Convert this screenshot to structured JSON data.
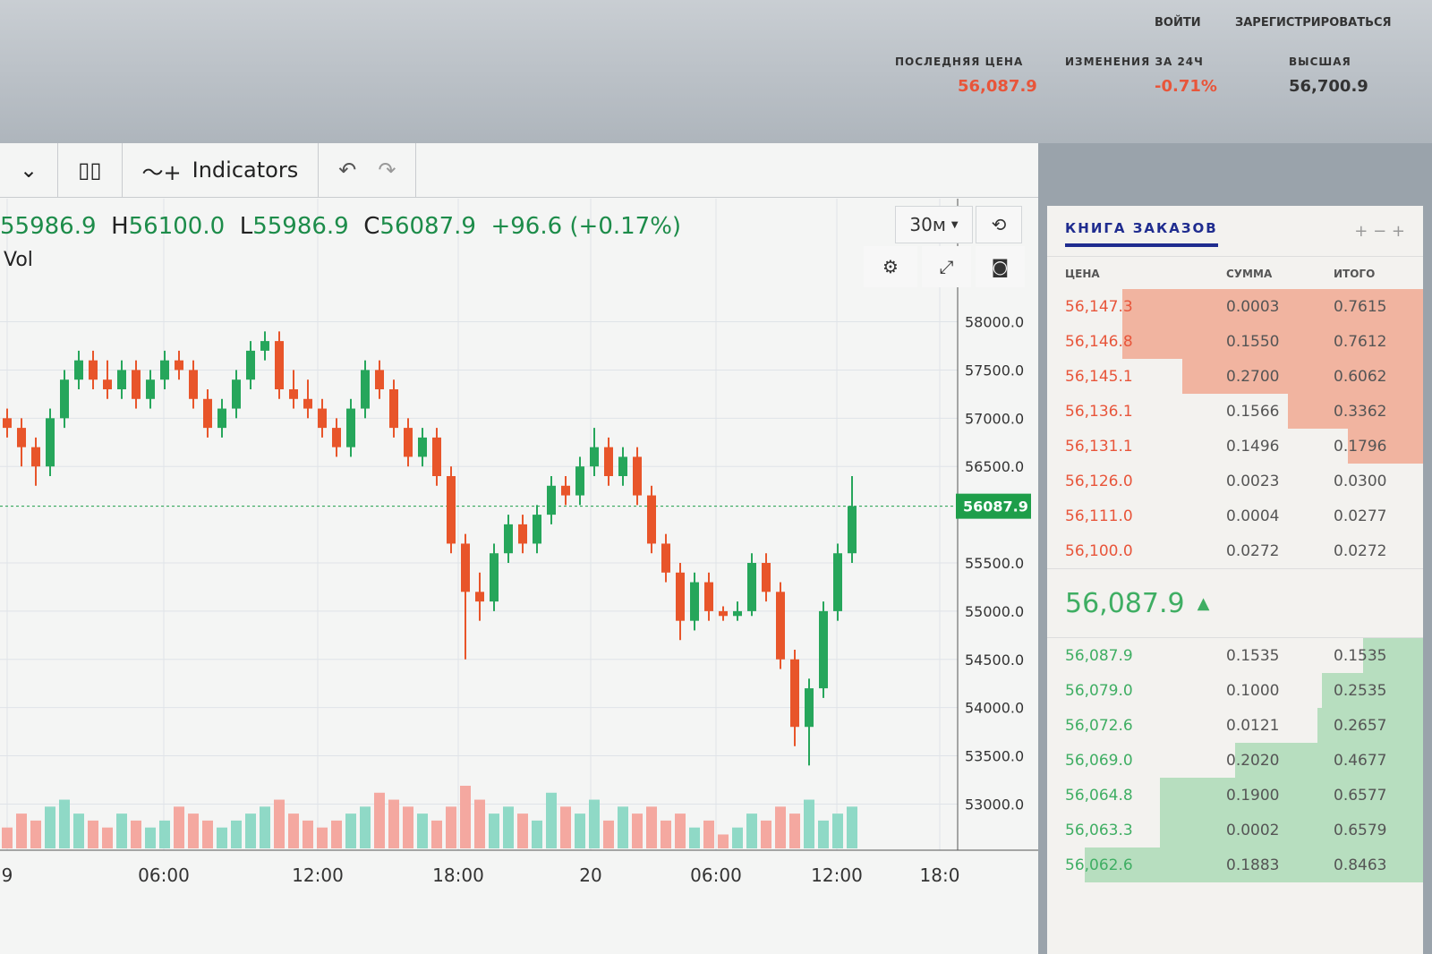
{
  "header": {
    "auth": {
      "login": "ВОЙТИ",
      "register": "ЗАРЕГИСТРИРОВАТЬСЯ"
    },
    "stats": [
      {
        "label": "ПОСЛЕДНЯЯ ЦЕНА",
        "value": "56,087.9",
        "color": "#e8553a"
      },
      {
        "label": "ИЗМЕНЕНИЯ ЗА 24Ч",
        "value": "-0.71%",
        "color": "#e8553a"
      },
      {
        "label": "ВЫСШАЯ",
        "value": "56,700.9",
        "color": "#333333"
      }
    ]
  },
  "toolbar": {
    "indicators_label": "Indicators",
    "interval": "30м"
  },
  "legend": {
    "o": "55986.9",
    "h": "56100.0",
    "l": "55986.9",
    "c": "56087.9",
    "change": "+96.6 (+0.17%)",
    "vol_label": "Vol"
  },
  "colors": {
    "up": "#26a65b",
    "down": "#e8552a",
    "vol_up": "#8fd9c6",
    "vol_down": "#f4a8a0",
    "price_tag": "#1e9e4a"
  },
  "chart_data": {
    "type": "candlestick",
    "ylim": [
      52800,
      58200
    ],
    "y_ticks": [
      "58000.0",
      "57500.0",
      "57000.0",
      "56500.0",
      "55500.0",
      "55000.0",
      "54500.0",
      "54000.0",
      "53500.0",
      "53000.0"
    ],
    "y_tick_values": [
      58000,
      57500,
      57000,
      56500,
      55500,
      55000,
      54500,
      54000,
      53500,
      53000
    ],
    "x_ticks": [
      "9",
      "06:00",
      "12:00",
      "18:00",
      "20",
      "06:00",
      "12:00",
      "18:0"
    ],
    "last_price": "56087.9",
    "ohlc": [
      [
        57000,
        57100,
        56800,
        56900
      ],
      [
        56900,
        57000,
        56500,
        56700
      ],
      [
        56700,
        56800,
        56300,
        56500
      ],
      [
        56500,
        57100,
        56400,
        57000
      ],
      [
        57000,
        57500,
        56900,
        57400
      ],
      [
        57400,
        57700,
        57300,
        57600
      ],
      [
        57600,
        57700,
        57300,
        57400
      ],
      [
        57400,
        57600,
        57200,
        57300
      ],
      [
        57300,
        57600,
        57200,
        57500
      ],
      [
        57500,
        57600,
        57100,
        57200
      ],
      [
        57200,
        57500,
        57100,
        57400
      ],
      [
        57400,
        57700,
        57300,
        57600
      ],
      [
        57600,
        57700,
        57400,
        57500
      ],
      [
        57500,
        57600,
        57100,
        57200
      ],
      [
        57200,
        57300,
        56800,
        56900
      ],
      [
        56900,
        57200,
        56800,
        57100
      ],
      [
        57100,
        57500,
        57000,
        57400
      ],
      [
        57400,
        57800,
        57300,
        57700
      ],
      [
        57700,
        57900,
        57600,
        57800
      ],
      [
        57800,
        57900,
        57200,
        57300
      ],
      [
        57300,
        57500,
        57100,
        57200
      ],
      [
        57200,
        57400,
        57000,
        57100
      ],
      [
        57100,
        57200,
        56800,
        56900
      ],
      [
        56900,
        57000,
        56600,
        56700
      ],
      [
        56700,
        57200,
        56600,
        57100
      ],
      [
        57100,
        57600,
        57000,
        57500
      ],
      [
        57500,
        57600,
        57200,
        57300
      ],
      [
        57300,
        57400,
        56800,
        56900
      ],
      [
        56900,
        57000,
        56500,
        56600
      ],
      [
        56600,
        56900,
        56500,
        56800
      ],
      [
        56800,
        56900,
        56300,
        56400
      ],
      [
        56400,
        56500,
        55600,
        55700
      ],
      [
        55700,
        55800,
        54500,
        55200
      ],
      [
        55200,
        55400,
        54900,
        55100
      ],
      [
        55100,
        55700,
        55000,
        55600
      ],
      [
        55600,
        56000,
        55500,
        55900
      ],
      [
        55900,
        56000,
        55600,
        55700
      ],
      [
        55700,
        56100,
        55600,
        56000
      ],
      [
        56000,
        56400,
        55900,
        56300
      ],
      [
        56300,
        56400,
        56100,
        56200
      ],
      [
        56200,
        56600,
        56100,
        56500
      ],
      [
        56500,
        56900,
        56400,
        56700
      ],
      [
        56700,
        56800,
        56300,
        56400
      ],
      [
        56400,
        56700,
        56300,
        56600
      ],
      [
        56600,
        56700,
        56100,
        56200
      ],
      [
        56200,
        56300,
        55600,
        55700
      ],
      [
        55700,
        55800,
        55300,
        55400
      ],
      [
        55400,
        55500,
        54700,
        54900
      ],
      [
        54900,
        55400,
        54800,
        55300
      ],
      [
        55300,
        55400,
        54900,
        55000
      ],
      [
        55000,
        55050,
        54900,
        54950
      ],
      [
        54950,
        55100,
        54900,
        55000
      ],
      [
        55000,
        55600,
        54950,
        55500
      ],
      [
        55500,
        55600,
        55100,
        55200
      ],
      [
        55200,
        55300,
        54400,
        54500
      ],
      [
        54500,
        54600,
        53600,
        53800
      ],
      [
        53800,
        54300,
        53400,
        54200
      ],
      [
        54200,
        55100,
        54100,
        55000
      ],
      [
        55000,
        55700,
        54900,
        55600
      ],
      [
        55600,
        56400,
        55500,
        56087.9
      ]
    ],
    "volume": [
      3,
      5,
      4,
      6,
      7,
      5,
      4,
      3,
      5,
      4,
      3,
      4,
      6,
      5,
      4,
      3,
      4,
      5,
      6,
      7,
      5,
      4,
      3,
      4,
      5,
      6,
      8,
      7,
      6,
      5,
      4,
      6,
      9,
      7,
      5,
      6,
      5,
      4,
      8,
      6,
      5,
      7,
      4,
      6,
      5,
      6,
      4,
      5,
      3,
      4,
      2,
      3,
      5,
      4,
      6,
      5,
      7,
      4,
      5,
      6
    ]
  },
  "orderbook": {
    "title": "КНИГА ЗАКАЗОВ",
    "columns": [
      "ЦЕНА",
      "СУММА",
      "ИТОГО"
    ],
    "asks": [
      {
        "price": "56,147.3",
        "amount": "0.0003",
        "total": "0.7615",
        "depth": 0.8
      },
      {
        "price": "56,146.8",
        "amount": "0.1550",
        "total": "0.7612",
        "depth": 0.8
      },
      {
        "price": "56,145.1",
        "amount": "0.2700",
        "total": "0.6062",
        "depth": 0.64
      },
      {
        "price": "56,136.1",
        "amount": "0.1566",
        "total": "0.3362",
        "depth": 0.36
      },
      {
        "price": "56,131.1",
        "amount": "0.1496",
        "total": "0.1796",
        "depth": 0.2
      },
      {
        "price": "56,126.0",
        "amount": "0.0023",
        "total": "0.0300",
        "depth": 0
      },
      {
        "price": "56,111.0",
        "amount": "0.0004",
        "total": "0.0277",
        "depth": 0
      },
      {
        "price": "56,100.0",
        "amount": "0.0272",
        "total": "0.0272",
        "depth": 0
      }
    ],
    "mid_price": "56,087.9",
    "bids": [
      {
        "price": "56,087.9",
        "amount": "0.1535",
        "total": "0.1535",
        "depth": 0.16
      },
      {
        "price": "56,079.0",
        "amount": "0.1000",
        "total": "0.2535",
        "depth": 0.27
      },
      {
        "price": "56,072.6",
        "amount": "0.0121",
        "total": "0.2657",
        "depth": 0.28
      },
      {
        "price": "56,069.0",
        "amount": "0.2020",
        "total": "0.4677",
        "depth": 0.5
      },
      {
        "price": "56,064.8",
        "amount": "0.1900",
        "total": "0.6577",
        "depth": 0.7
      },
      {
        "price": "56,063.3",
        "amount": "0.0002",
        "total": "0.6579",
        "depth": 0.7
      },
      {
        "price": "56,062.6",
        "amount": "0.1883",
        "total": "0.8463",
        "depth": 0.9
      }
    ]
  }
}
